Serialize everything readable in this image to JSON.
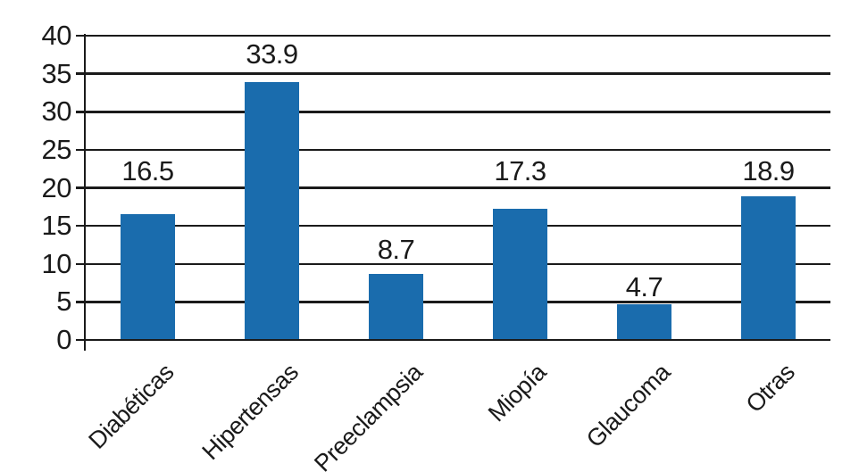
{
  "chart_data": {
    "type": "bar",
    "categories": [
      "Diabéticas",
      "Hipertensas",
      "Preeclampsia",
      "Miopía",
      "Glaucoma",
      "Otras"
    ],
    "values": [
      16.5,
      33.9,
      8.7,
      17.3,
      4.7,
      18.9
    ],
    "value_labels": [
      "16.5",
      "33.9",
      "8.7",
      "17.3",
      "4.7",
      "18.9"
    ],
    "title": "",
    "xlabel": "",
    "ylabel": "",
    "ylim": [
      0,
      40
    ],
    "yticks": [
      0,
      5,
      10,
      15,
      20,
      25,
      30,
      35,
      40
    ],
    "ytick_labels": [
      "0",
      "5",
      "10",
      "15",
      "20",
      "25",
      "30",
      "35",
      "40"
    ],
    "grid": true,
    "gridline_orientation": "horizontal",
    "legend_position": "none",
    "bar_color": "#1a6cad",
    "axis_color": "#1a1a1a",
    "background_color": "#ffffff",
    "x_label_rotation_deg": 45
  }
}
